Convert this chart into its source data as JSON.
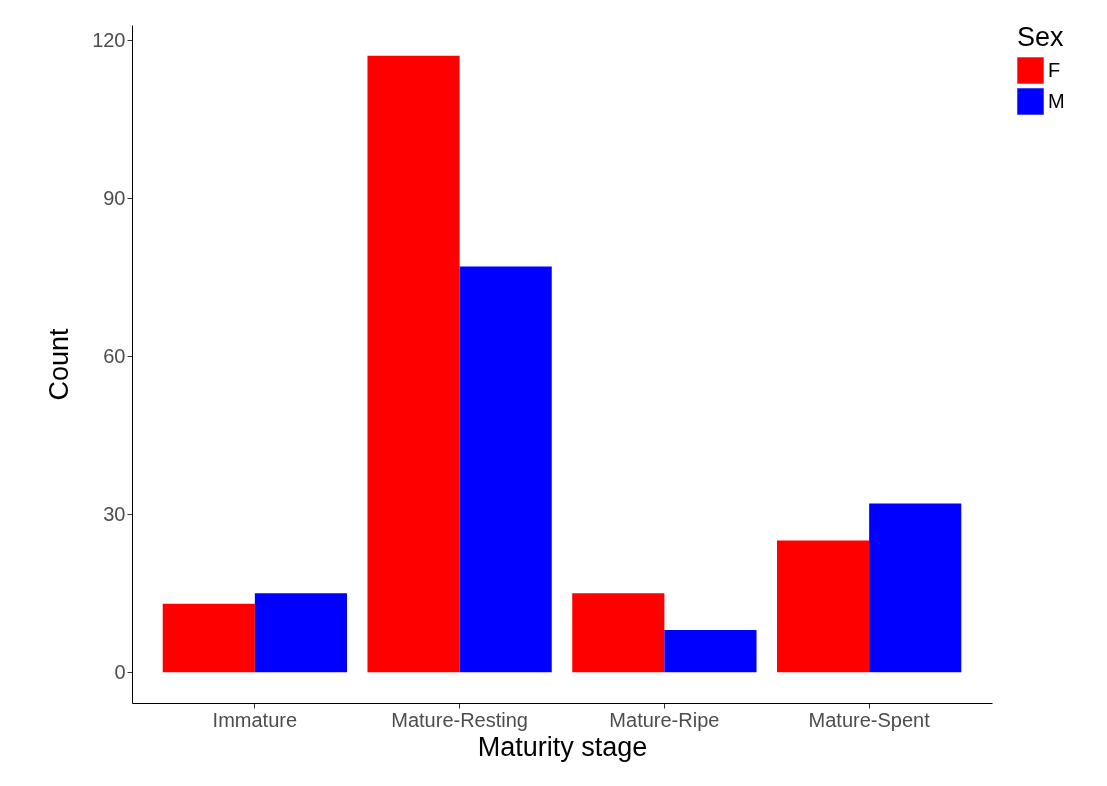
{
  "chart_data": {
    "type": "bar",
    "xlabel": "Maturity stage",
    "ylabel": "Count",
    "legend_title": "Sex",
    "categories": [
      "Immature",
      "Mature-Resting",
      "Mature-Ripe",
      "Mature-Spent"
    ],
    "series": [
      {
        "name": "F",
        "color": "#ff0000",
        "values": [
          13,
          117,
          15,
          25
        ]
      },
      {
        "name": "M",
        "color": "#0000ff",
        "values": [
          15,
          77,
          8,
          32
        ]
      }
    ],
    "ylim": [
      -5.85,
      122.85
    ],
    "yticks": [
      0,
      30,
      60,
      90,
      120
    ],
    "grid": false,
    "legend": "right"
  }
}
